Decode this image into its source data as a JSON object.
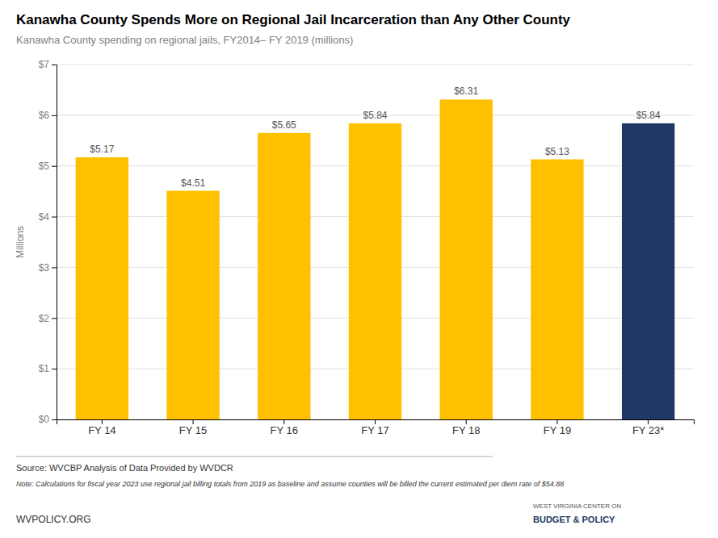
{
  "chart_data": {
    "type": "bar",
    "title": "Kanawha County Spends More on Regional Jail Incarceration than Any Other County",
    "subtitle": "Kanawha County spending on regional jails, FY2014– FY 2019 (millions)",
    "categories": [
      "FY 14",
      "FY 15",
      "FY 16",
      "FY 17",
      "FY 18",
      "FY 19",
      "FY 23*"
    ],
    "values": [
      5.17,
      4.51,
      5.65,
      5.84,
      6.31,
      5.13,
      5.84
    ],
    "value_labels": [
      "$5.17",
      "$4.51",
      "$5.65",
      "$5.84",
      "$6.31",
      "$5.13",
      "$5.84"
    ],
    "data_labels": true,
    "colors": [
      "#FFC000",
      "#FFC000",
      "#FFC000",
      "#FFC000",
      "#FFC000",
      "#FFC000",
      "#1F3864"
    ],
    "ylabel": "Millions",
    "ylim": [
      0,
      7
    ],
    "yticks": [
      {
        "value": 0,
        "label": "$0"
      },
      {
        "value": 1,
        "label": "$1"
      },
      {
        "value": 2,
        "label": "$2"
      },
      {
        "value": 3,
        "label": "$3"
      },
      {
        "value": 4,
        "label": "$4"
      },
      {
        "value": 5,
        "label": "$5"
      },
      {
        "value": 6,
        "label": "$6"
      },
      {
        "value": 7,
        "label": "$7"
      }
    ],
    "grid": true,
    "annotations": [
      "Source: WVCBP Analysis of Data Provided by WVDCR",
      "Note: Calculations for fiscal year 2023 use regional jail billing totals from 2019 as baseline and assume counties will be billed the current estimated per diem rate of $54.88",
      "WVPOLICY.ORG",
      "WEST VIRGINIA CENTER ON",
      "BUDGET & POLICY"
    ]
  }
}
